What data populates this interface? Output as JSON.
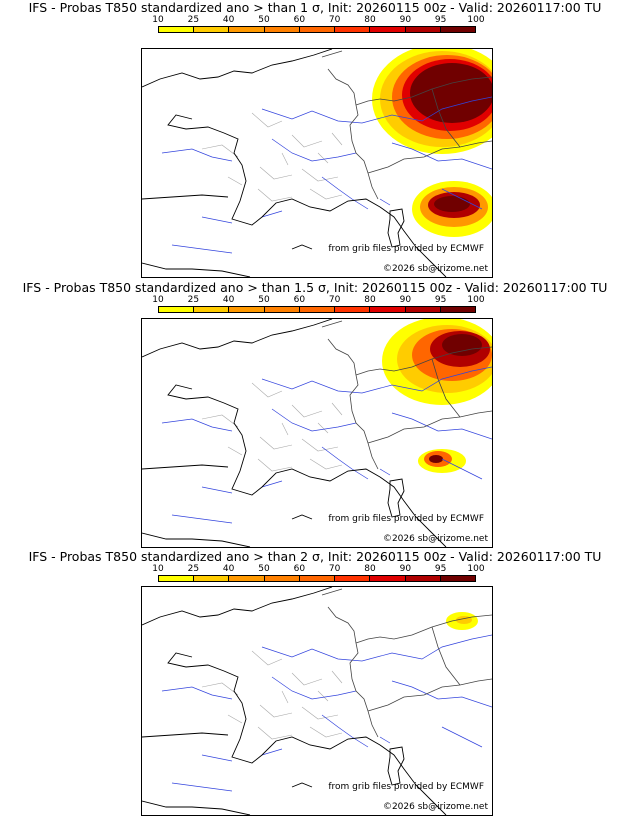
{
  "colorbar": {
    "ticks": [
      "10",
      "25",
      "40",
      "50",
      "60",
      "70",
      "80",
      "90",
      "95",
      "100"
    ],
    "colors": [
      "#ffff00",
      "#ffcc00",
      "#ff9900",
      "#ff8000",
      "#ff6600",
      "#ff3300",
      "#e00000",
      "#b00000",
      "#700000"
    ]
  },
  "panels": [
    {
      "title": "IFS - Probas T850  standardized ano > than 1 σ, Init: 20260115 00z - Valid: 20260117:00 TU",
      "threshold_sigma": "1",
      "credit_source": "from grib files provided by ECMWF",
      "credit_copyright": "©2026 sb@irizome.net"
    },
    {
      "title": "IFS - Probas T850  standardized ano > than 1.5 σ, Init: 20260115 00z - Valid: 20260117:00 TU",
      "threshold_sigma": "1.5",
      "credit_source": "from grib files provided by ECMWF",
      "credit_copyright": "©2026 sb@irizome.net"
    },
    {
      "title": "IFS - Probas T850  standardized ano > than 2 σ, Init: 20260115 00z - Valid: 20260117:00 TU",
      "threshold_sigma": "2",
      "credit_source": "from grib files provided by ECMWF",
      "credit_copyright": "©2026 sb@irizome.net"
    }
  ]
}
